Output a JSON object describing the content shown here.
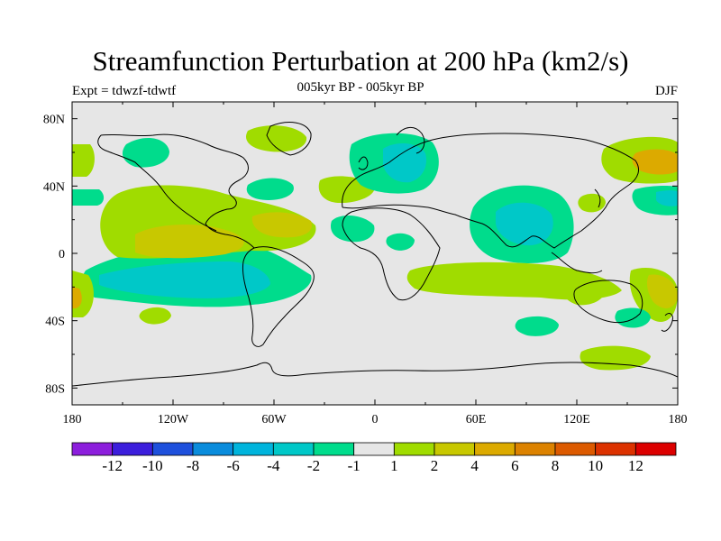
{
  "header": {
    "title": "Streamfunction Perturbation at 200 hPa (km2/s)",
    "subtitle": "005kyr BP - 005kyr BP",
    "experiment": "Expt = tdwzf-tdwtf",
    "season": "DJF"
  },
  "axes": {
    "lat_labels": [
      "80N",
      "40N",
      "0",
      "40S",
      "80S"
    ],
    "lon_labels": [
      "180",
      "120W",
      "60W",
      "0",
      "60E",
      "120E",
      "180"
    ]
  },
  "colors": {
    "background": "#e6e6e6",
    "neg1": "#00dc8c",
    "neg2": "#00c8c8",
    "pos1": "#a0dc00",
    "pos2": "#c8c800",
    "pos3": "#dcaa00"
  },
  "colorbar": {
    "colors": [
      "#8c1edc",
      "#3c1edc",
      "#1e50dc",
      "#0a8cdc",
      "#00b4dc",
      "#00c8c8",
      "#00dc8c",
      "#e6e6e6",
      "#a0dc00",
      "#c8c800",
      "#dcaa00",
      "#dc8200",
      "#dc5a00",
      "#dc3200",
      "#dc0000"
    ],
    "labels": [
      "-12",
      "-10",
      "-8",
      "-6",
      "-4",
      "-2",
      "-1",
      "1",
      "2",
      "4",
      "6",
      "8",
      "10",
      "12"
    ]
  }
}
